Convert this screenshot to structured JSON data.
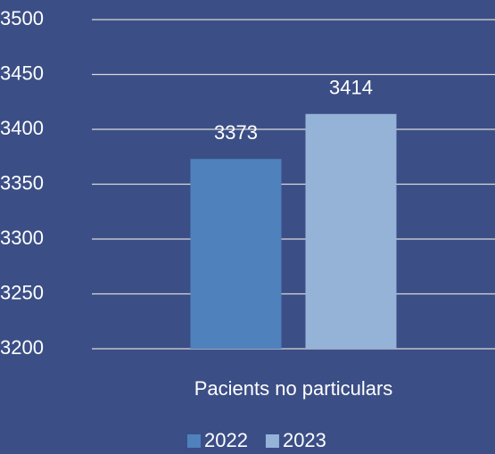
{
  "chart_data": {
    "type": "bar",
    "categories": [
      "Pacients no particulars"
    ],
    "series": [
      {
        "name": "2022",
        "color": "#4f81bd",
        "values": [
          3373
        ]
      },
      {
        "name": "2023",
        "color": "#95b3d7",
        "values": [
          3414
        ]
      }
    ],
    "ylim": [
      3200,
      3500
    ],
    "yticks": [
      3200,
      3250,
      3300,
      3350,
      3400,
      3450,
      3500
    ],
    "grid": true,
    "legend": "bottom"
  }
}
